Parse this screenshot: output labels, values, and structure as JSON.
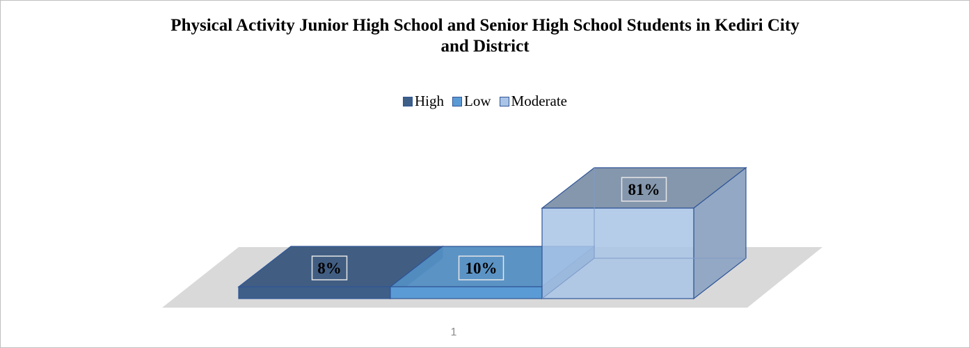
{
  "chart_data": {
    "type": "bar",
    "title_line1": "Physical Activity Junior High School and Senior High School Students in Kediri City",
    "title_line2": "and District",
    "categories": [
      "1"
    ],
    "series": [
      {
        "name": "High",
        "values": [
          8
        ],
        "label": "8%",
        "color": "#3e5f88"
      },
      {
        "name": "Low",
        "values": [
          10
        ],
        "label": "10%",
        "color": "#5b9bd5"
      },
      {
        "name": "Moderate",
        "values": [
          81
        ],
        "label": "81%",
        "color": "#a9c4e6"
      }
    ],
    "value_format": "percent",
    "legend_position": "top",
    "gridlines": false,
    "projection": "3d"
  }
}
